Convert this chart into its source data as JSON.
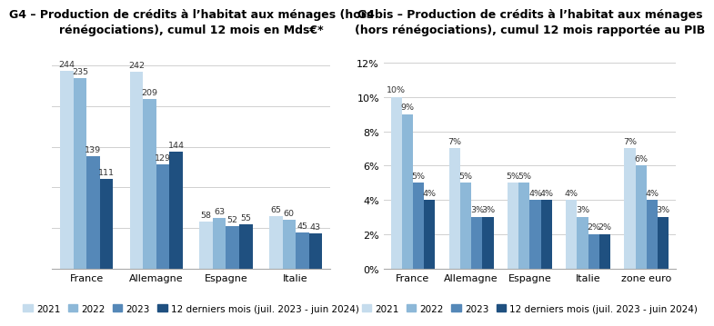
{
  "g4": {
    "title_line1": "G4 – Production de crédits à l’habitat aux ménages (hors",
    "title_line2": "rénégociations), cumul 12 mois en Mds€*",
    "categories": [
      "France",
      "Allemagne",
      "Espagne",
      "Italie"
    ],
    "series": {
      "2021": [
        244,
        242,
        58,
        65
      ],
      "2022": [
        235,
        209,
        63,
        60
      ],
      "2023": [
        139,
        129,
        52,
        45
      ],
      "12 derniers mois (juil. 2023 - juin 2024)": [
        111,
        144,
        55,
        43
      ]
    },
    "ylim": [
      0,
      275
    ],
    "yticks": [
      0,
      50,
      100,
      150,
      200,
      250
    ],
    "show_yaxis": false
  },
  "g4bis": {
    "title_line1": "G4bis – Production de crédits à l’habitat aux ménages",
    "title_line2": "(hors rénégociations), cumul 12 mois rapportée au PIB",
    "categories": [
      "France",
      "Allemagne",
      "Espagne",
      "Italie",
      "zone euro"
    ],
    "series": {
      "2021": [
        0.1,
        0.07,
        0.05,
        0.04,
        0.07
      ],
      "2022": [
        0.09,
        0.05,
        0.05,
        0.03,
        0.06
      ],
      "2023": [
        0.05,
        0.03,
        0.04,
        0.02,
        0.04
      ],
      "12 derniers mois (juil. 2023 - juin 2024)": [
        0.04,
        0.03,
        0.04,
        0.02,
        0.03
      ]
    },
    "ylim": [
      0,
      0.13
    ],
    "yticks": [
      0,
      0.02,
      0.04,
      0.06,
      0.08,
      0.1,
      0.12
    ],
    "show_yaxis": true
  },
  "colors": {
    "2021": "#c5dced",
    "2022": "#8db8d8",
    "2023": "#5588b8",
    "12 derniers mois (juil. 2023 - juin 2024)": "#1f5080"
  },
  "legend_labels": [
    "2021",
    "2022",
    "2023",
    "12 derniers mois (juil. 2023 - juin 2024)"
  ],
  "background_color": "#ffffff",
  "bar_width": 0.19,
  "title_fontsize": 9.0,
  "label_fontsize": 6.8,
  "tick_fontsize": 8.0,
  "legend_fontsize": 7.5
}
